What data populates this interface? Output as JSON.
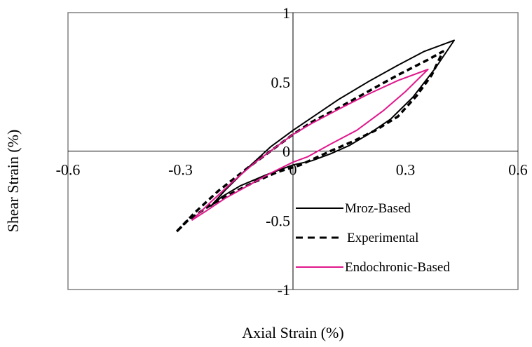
{
  "chart_data": {
    "type": "line",
    "title": "",
    "xlabel": "Axial Strain (%)",
    "ylabel": "Shear Strain (%)",
    "xlim": [
      -0.6,
      0.6
    ],
    "ylim": [
      -1,
      1
    ],
    "x_ticks": [
      "-0.6",
      "-0.3",
      "0",
      "0.3",
      "0.6"
    ],
    "y_ticks": [
      "1",
      "0.5",
      "0",
      "-0.5",
      "-1"
    ],
    "x_tick_values": [
      -0.6,
      -0.3,
      0,
      0.3,
      0.6
    ],
    "y_tick_values": [
      1,
      0.5,
      0,
      -0.5,
      -1
    ],
    "grid": false,
    "legend_position": "bottom-right",
    "plot_background": "#ffffff",
    "frame_color": "#808080",
    "series": [
      {
        "name": "Mroz-Based",
        "color": "#000000",
        "style": "solid",
        "x": [
          -0.22,
          -0.18,
          -0.12,
          -0.06,
          0.0,
          0.06,
          0.12,
          0.2,
          0.28,
          0.35,
          0.43,
          0.38,
          0.32,
          0.26,
          0.2,
          0.15,
          0.1,
          0.05,
          0.0,
          -0.07,
          -0.14,
          -0.19,
          -0.22
        ],
        "y": [
          -0.4,
          -0.28,
          -0.12,
          0.03,
          0.15,
          0.26,
          0.37,
          0.5,
          0.62,
          0.72,
          0.8,
          0.6,
          0.39,
          0.23,
          0.12,
          0.04,
          -0.02,
          -0.07,
          -0.1,
          -0.17,
          -0.25,
          -0.33,
          -0.4
        ]
      },
      {
        "name": "Experimental",
        "color": "#000000",
        "style": "dashed",
        "x": [
          -0.31,
          -0.26,
          -0.2,
          -0.12,
          -0.05,
          0.0,
          0.05,
          0.12,
          0.2,
          0.28,
          0.36,
          0.4,
          0.37,
          0.33,
          0.28,
          0.22,
          0.16,
          0.1,
          0.06,
          0.02,
          -0.04,
          -0.1,
          -0.16,
          -0.22,
          -0.28,
          -0.31
        ],
        "y": [
          -0.58,
          -0.44,
          -0.29,
          -0.12,
          0.02,
          0.12,
          0.21,
          0.31,
          0.43,
          0.55,
          0.66,
          0.72,
          0.55,
          0.4,
          0.25,
          0.15,
          0.07,
          0.0,
          -0.05,
          -0.1,
          -0.15,
          -0.22,
          -0.3,
          -0.39,
          -0.5,
          -0.58
        ]
      },
      {
        "name": "Endochronic-Based",
        "color": "#e0178c",
        "style": "solid",
        "x": [
          -0.27,
          -0.22,
          -0.16,
          -0.1,
          -0.04,
          0.0,
          0.05,
          0.12,
          0.2,
          0.28,
          0.36,
          0.3,
          0.24,
          0.17,
          0.1,
          0.04,
          0.0,
          -0.06,
          -0.12,
          -0.18,
          -0.23,
          -0.27
        ],
        "y": [
          -0.5,
          -0.37,
          -0.22,
          -0.08,
          0.04,
          0.12,
          0.2,
          0.3,
          0.41,
          0.51,
          0.59,
          0.43,
          0.29,
          0.15,
          0.05,
          -0.04,
          -0.08,
          -0.16,
          -0.25,
          -0.34,
          -0.43,
          -0.5
        ]
      }
    ]
  }
}
